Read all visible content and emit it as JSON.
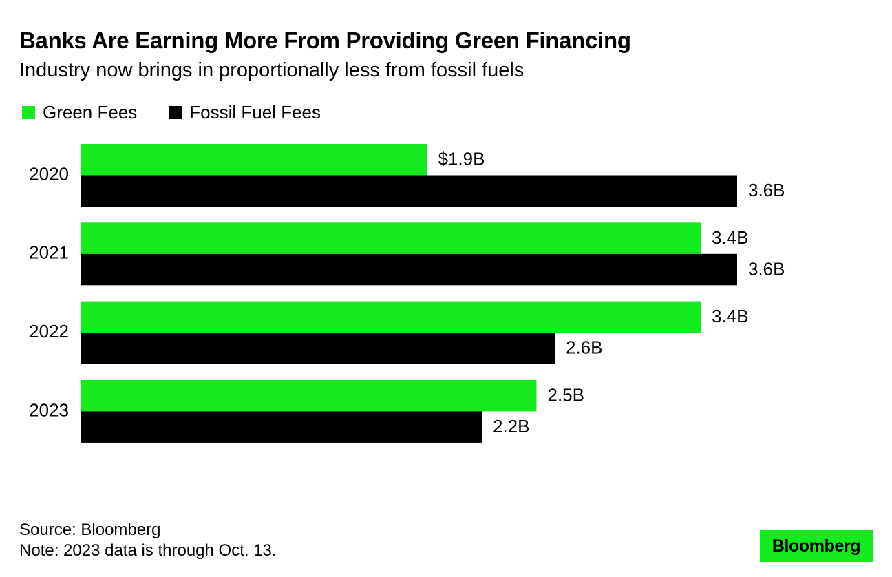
{
  "colors": {
    "green": "#14EB1E",
    "black": "#000000"
  },
  "chart_data": {
    "type": "bar",
    "orientation": "horizontal",
    "title": "Banks Are Earning More From Providing Green Financing",
    "subtitle": "Industry now brings in proportionally less from fossil fuels",
    "categories": [
      "2020",
      "2021",
      "2022",
      "2023"
    ],
    "series": [
      {
        "name": "Green Fees",
        "color": "#14EB1E",
        "values": [
          1.9,
          3.4,
          3.4,
          2.5
        ],
        "labels": [
          "$1.9B",
          "3.4B",
          "3.4B",
          "2.5B"
        ]
      },
      {
        "name": "Fossil Fuel Fees",
        "color": "#000000",
        "values": [
          3.6,
          3.6,
          2.6,
          2.2
        ],
        "labels": [
          "3.6B",
          "3.6B",
          "2.6B",
          "2.2B"
        ]
      }
    ],
    "xlim": [
      0,
      3.6
    ],
    "grid": false,
    "legend_position": "top-left"
  },
  "footer": {
    "source": "Source: Bloomberg",
    "note": "Note: 2023 data is through Oct. 13."
  },
  "logo_text": "Bloomberg"
}
